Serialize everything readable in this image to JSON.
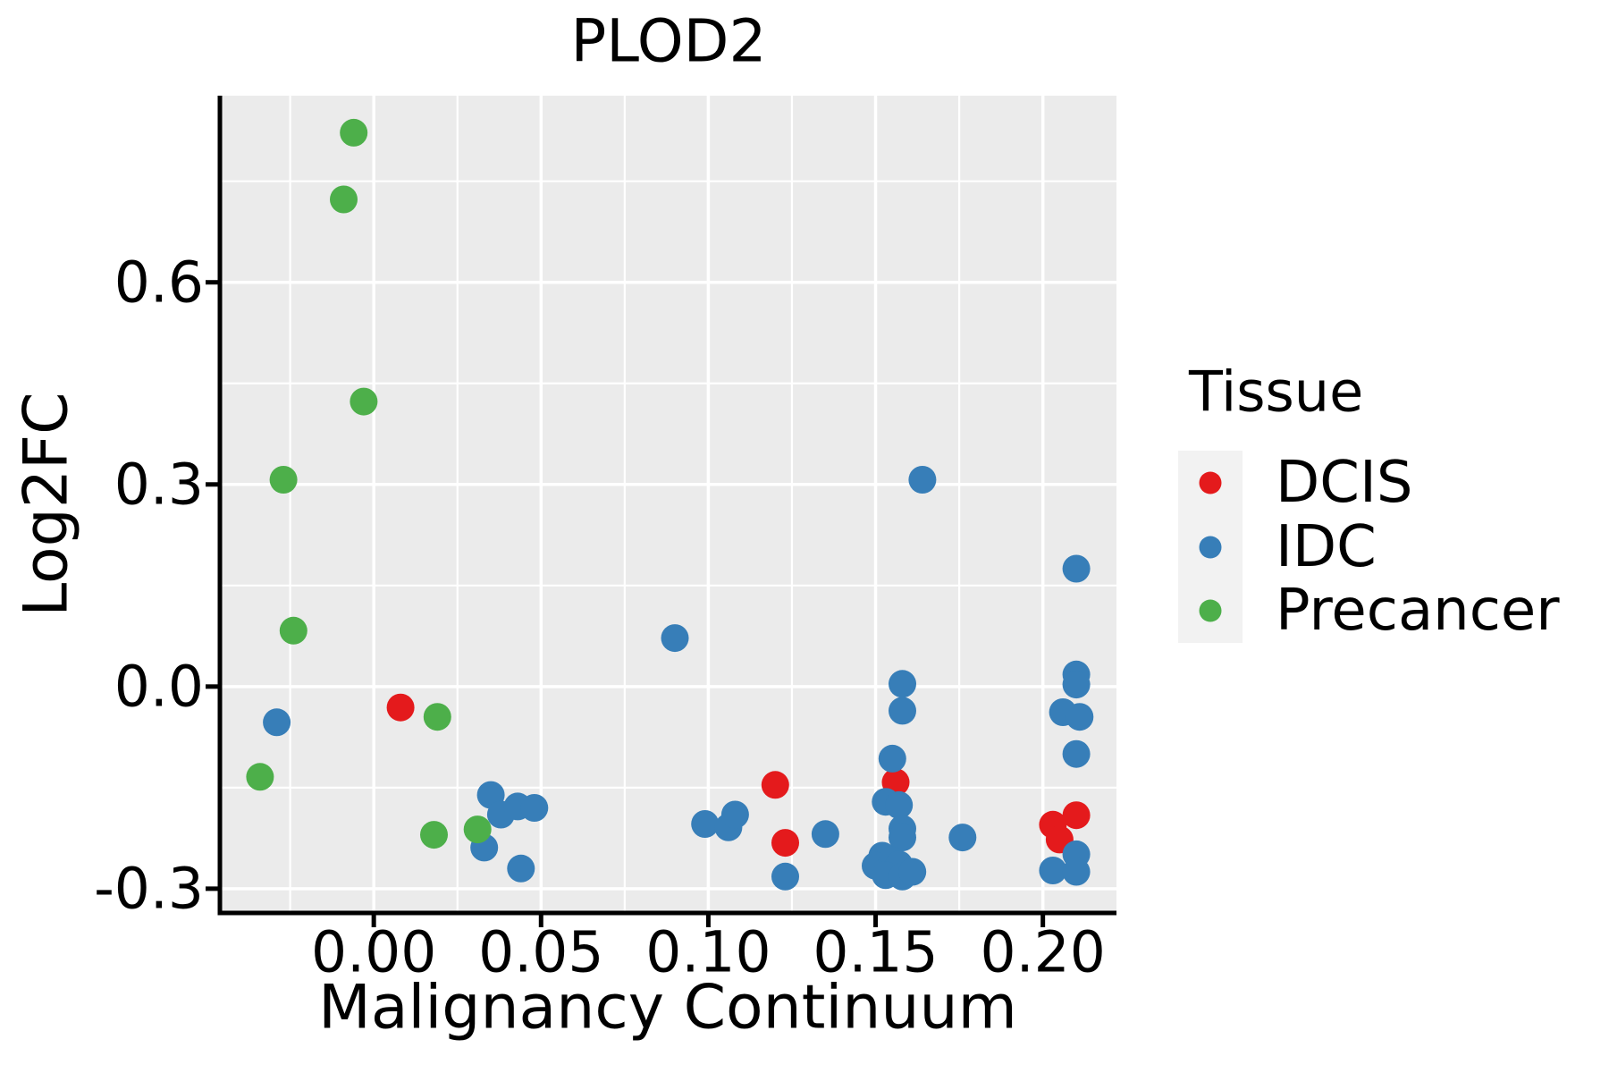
{
  "title": "PLOD2",
  "chart_data": {
    "type": "scatter",
    "title": "PLOD2",
    "xlabel": "Malignancy Continuum",
    "ylabel": "Log2FC",
    "xlim": [
      -0.046,
      0.222
    ],
    "ylim": [
      -0.336,
      0.877
    ],
    "grid": true,
    "x_ticks": {
      "values": [
        0.0,
        0.05,
        0.1,
        0.15,
        0.2
      ],
      "labels": [
        "0.00",
        "0.05",
        "0.10",
        "0.15",
        "0.20"
      ],
      "minor": [
        -0.025,
        0.025,
        0.075,
        0.125,
        0.175
      ]
    },
    "y_ticks": {
      "values": [
        0.6,
        0.3,
        0.0,
        -0.3
      ],
      "labels": [
        "0.6",
        "0.3",
        "0.0",
        "-0.3"
      ],
      "minor": [
        0.75,
        0.45,
        0.15,
        -0.15
      ]
    },
    "legend": {
      "title": "Tissue",
      "position": "right",
      "entries": [
        "DCIS",
        "IDC",
        "Precancer"
      ]
    },
    "series": [
      {
        "name": "DCIS",
        "color": "#E41A1C",
        "points": [
          [
            0.008,
            -0.031
          ],
          [
            0.12,
            -0.146
          ],
          [
            0.123,
            -0.232
          ],
          [
            0.156,
            -0.142
          ],
          [
            0.203,
            -0.205
          ],
          [
            0.205,
            -0.227
          ],
          [
            0.21,
            -0.191
          ]
        ]
      },
      {
        "name": "IDC",
        "color": "#377EB8",
        "points": [
          [
            -0.029,
            -0.053
          ],
          [
            0.033,
            -0.239
          ],
          [
            0.035,
            -0.161
          ],
          [
            0.038,
            -0.19
          ],
          [
            0.043,
            -0.178
          ],
          [
            0.048,
            -0.18
          ],
          [
            0.044,
            -0.27
          ],
          [
            0.09,
            0.072
          ],
          [
            0.099,
            -0.204
          ],
          [
            0.106,
            -0.209
          ],
          [
            0.108,
            -0.19
          ],
          [
            0.123,
            -0.282
          ],
          [
            0.135,
            -0.219
          ],
          [
            0.158,
            0.004
          ],
          [
            0.158,
            -0.036
          ],
          [
            0.155,
            -0.107
          ],
          [
            0.153,
            -0.171
          ],
          [
            0.157,
            -0.176
          ],
          [
            0.158,
            -0.211
          ],
          [
            0.158,
            -0.224
          ],
          [
            0.152,
            -0.251
          ],
          [
            0.15,
            -0.266
          ],
          [
            0.155,
            -0.258
          ],
          [
            0.157,
            -0.264
          ],
          [
            0.153,
            -0.28
          ],
          [
            0.158,
            -0.282
          ],
          [
            0.161,
            -0.275
          ],
          [
            0.176,
            -0.224
          ],
          [
            0.164,
            0.307
          ],
          [
            0.21,
            0.175
          ],
          [
            0.21,
            0.018
          ],
          [
            0.21,
            0.003
          ],
          [
            0.206,
            -0.038
          ],
          [
            0.211,
            -0.045
          ],
          [
            0.21,
            -0.1
          ],
          [
            0.21,
            -0.249
          ],
          [
            0.203,
            -0.273
          ],
          [
            0.21,
            -0.275
          ]
        ]
      },
      {
        "name": "Precancer",
        "color": "#4DAF4A",
        "points": [
          [
            -0.006,
            0.822
          ],
          [
            -0.009,
            0.723
          ],
          [
            -0.003,
            0.423
          ],
          [
            -0.027,
            0.307
          ],
          [
            -0.024,
            0.083
          ],
          [
            -0.034,
            -0.134
          ],
          [
            0.019,
            -0.045
          ],
          [
            0.018,
            -0.22
          ],
          [
            0.031,
            -0.212
          ]
        ]
      }
    ]
  },
  "style": {
    "panel_bg": "#EBEBEB",
    "grid_color": "#FFFFFF",
    "spine_color": "#000000",
    "text_color": "#000000",
    "legend_key_bg": "#F2F2F2",
    "dcis_color": "#E41A1C",
    "idc_color": "#377EB8",
    "precancer_color": "#4DAF4A"
  }
}
